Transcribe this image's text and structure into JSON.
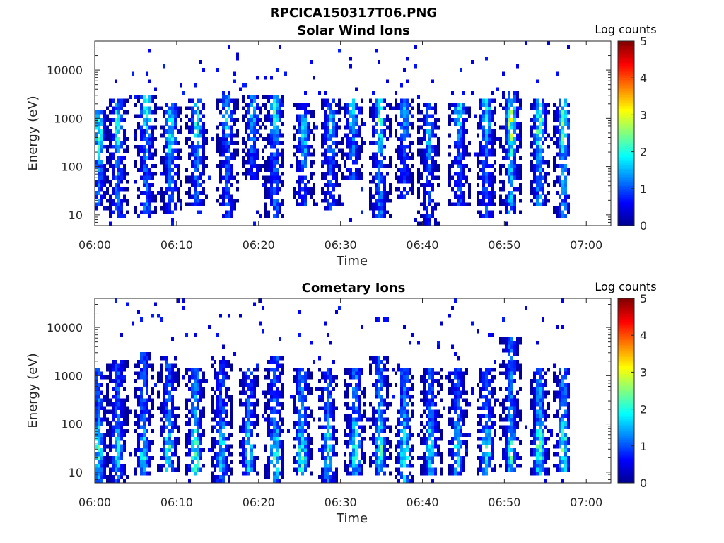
{
  "figure_title": "RPCICA150317T06.PNG",
  "colormap": [
    "#00008f",
    "#0000ff",
    "#0080ff",
    "#00ffff",
    "#80ff80",
    "#ffff00",
    "#ff8000",
    "#ff0000",
    "#800000"
  ],
  "chart_data": [
    {
      "type": "heatmap",
      "title": "Solar Wind Ions",
      "xlabel": "Time",
      "ylabel": "Energy (eV)",
      "y_scale": "log",
      "ylim": [
        6,
        40000
      ],
      "xlim": [
        "06:00",
        "07:03"
      ],
      "x_ticks": [
        "06:00",
        "06:10",
        "06:20",
        "06:30",
        "06:40",
        "06:50",
        "07:00"
      ],
      "y_ticks": [
        "10",
        "100",
        "1000",
        "10000"
      ],
      "colorbar": {
        "label": "Log counts",
        "range": [
          0,
          5
        ],
        "ticks": [
          "0",
          "1",
          "2",
          "3",
          "4",
          "5"
        ]
      },
      "data_end": "06:58",
      "bursts": [
        {
          "t": 0.5,
          "lo": 15,
          "hi": 1500,
          "peak": 2.6,
          "peak_e": 500
        },
        {
          "t": 2.8,
          "lo": 8,
          "hi": 2500,
          "peak": 2.5,
          "peak_e": 600
        },
        {
          "t": 6.3,
          "lo": 10,
          "hi": 3000,
          "peak": 2.6,
          "peak_e": 1500
        },
        {
          "t": 9.3,
          "lo": 10,
          "hi": 2000,
          "peak": 2.3,
          "peak_e": 500
        },
        {
          "t": 12.5,
          "lo": 15,
          "hi": 2500,
          "peak": 2.4,
          "peak_e": 700
        },
        {
          "t": 16.2,
          "lo": 8,
          "hi": 3000,
          "peak": 2.1,
          "peak_e": 1200
        },
        {
          "t": 19.3,
          "lo": 50,
          "hi": 3000,
          "peak": 1.8,
          "peak_e": 1000
        },
        {
          "t": 22.0,
          "lo": 8,
          "hi": 3000,
          "peak": 2.3,
          "peak_e": 1500
        },
        {
          "t": 25.5,
          "lo": 15,
          "hi": 2000,
          "peak": 1.9,
          "peak_e": 400
        },
        {
          "t": 28.8,
          "lo": 12,
          "hi": 2500,
          "peak": 2.0,
          "peak_e": 600
        },
        {
          "t": 31.5,
          "lo": 50,
          "hi": 2500,
          "peak": 2.2,
          "peak_e": 1500
        },
        {
          "t": 34.8,
          "lo": 8,
          "hi": 2500,
          "peak": 2.6,
          "peak_e": 900
        },
        {
          "t": 37.8,
          "lo": 20,
          "hi": 2500,
          "peak": 1.8,
          "peak_e": 1500
        },
        {
          "t": 40.8,
          "lo": 6,
          "hi": 2000,
          "peak": 1.8,
          "peak_e": 400
        },
        {
          "t": 44.5,
          "lo": 15,
          "hi": 2000,
          "peak": 2.2,
          "peak_e": 1500
        },
        {
          "t": 47.8,
          "lo": 8,
          "hi": 2500,
          "peak": 2.2,
          "peak_e": 1500
        },
        {
          "t": 50.8,
          "lo": 10,
          "hi": 3500,
          "peak": 3.1,
          "peak_e": 800
        },
        {
          "t": 54.3,
          "lo": 15,
          "hi": 2500,
          "peak": 2.7,
          "peak_e": 700
        },
        {
          "t": 57.2,
          "lo": 8,
          "hi": 2500,
          "peak": 2.7,
          "peak_e": 700
        }
      ]
    },
    {
      "type": "heatmap",
      "title": "Cometary Ions",
      "xlabel": "Time",
      "ylabel": "Energy (eV)",
      "y_scale": "log",
      "ylim": [
        6,
        40000
      ],
      "xlim": [
        "06:00",
        "07:03"
      ],
      "x_ticks": [
        "06:00",
        "06:10",
        "06:20",
        "06:30",
        "06:40",
        "06:50",
        "07:00"
      ],
      "y_ticks": [
        "10",
        "100",
        "1000",
        "10000"
      ],
      "colorbar": {
        "label": "Log counts",
        "range": [
          0,
          5
        ],
        "ticks": [
          "0",
          "1",
          "2",
          "3",
          "4",
          "5"
        ]
      },
      "data_end": "06:58",
      "bursts": [
        {
          "t": 0.5,
          "lo": 6,
          "hi": 1500,
          "peak": 2.4,
          "peak_e": 30
        },
        {
          "t": 2.8,
          "lo": 6,
          "hi": 2000,
          "peak": 2.2,
          "peak_e": 30
        },
        {
          "t": 6.0,
          "lo": 8,
          "hi": 3000,
          "peak": 2.2,
          "peak_e": 25
        },
        {
          "t": 9.0,
          "lo": 10,
          "hi": 2500,
          "peak": 2.3,
          "peak_e": 30
        },
        {
          "t": 12.3,
          "lo": 8,
          "hi": 1500,
          "peak": 2.8,
          "peak_e": 20
        },
        {
          "t": 15.5,
          "lo": 6,
          "hi": 2000,
          "peak": 2.1,
          "peak_e": 30
        },
        {
          "t": 18.8,
          "lo": 8,
          "hi": 1500,
          "peak": 2.3,
          "peak_e": 30
        },
        {
          "t": 22.0,
          "lo": 6,
          "hi": 2500,
          "peak": 2.4,
          "peak_e": 25
        },
        {
          "t": 25.3,
          "lo": 8,
          "hi": 1500,
          "peak": 2.6,
          "peak_e": 20
        },
        {
          "t": 28.5,
          "lo": 6,
          "hi": 1500,
          "peak": 2.4,
          "peak_e": 30
        },
        {
          "t": 31.8,
          "lo": 8,
          "hi": 1500,
          "peak": 2.5,
          "peak_e": 30
        },
        {
          "t": 34.8,
          "lo": 8,
          "hi": 2500,
          "peak": 2.6,
          "peak_e": 30
        },
        {
          "t": 37.8,
          "lo": 6,
          "hi": 1500,
          "peak": 2.5,
          "peak_e": 25
        },
        {
          "t": 41.0,
          "lo": 8,
          "hi": 1500,
          "peak": 2.3,
          "peak_e": 30
        },
        {
          "t": 44.3,
          "lo": 8,
          "hi": 1500,
          "peak": 2.1,
          "peak_e": 30
        },
        {
          "t": 47.8,
          "lo": 8,
          "hi": 1500,
          "peak": 2.2,
          "peak_e": 30
        },
        {
          "t": 50.8,
          "lo": 10,
          "hi": 6000,
          "peak": 2.5,
          "peak_e": 25
        },
        {
          "t": 54.3,
          "lo": 8,
          "hi": 1500,
          "peak": 2.7,
          "peak_e": 30
        },
        {
          "t": 57.2,
          "lo": 10,
          "hi": 1500,
          "peak": 2.6,
          "peak_e": 30
        }
      ]
    }
  ]
}
